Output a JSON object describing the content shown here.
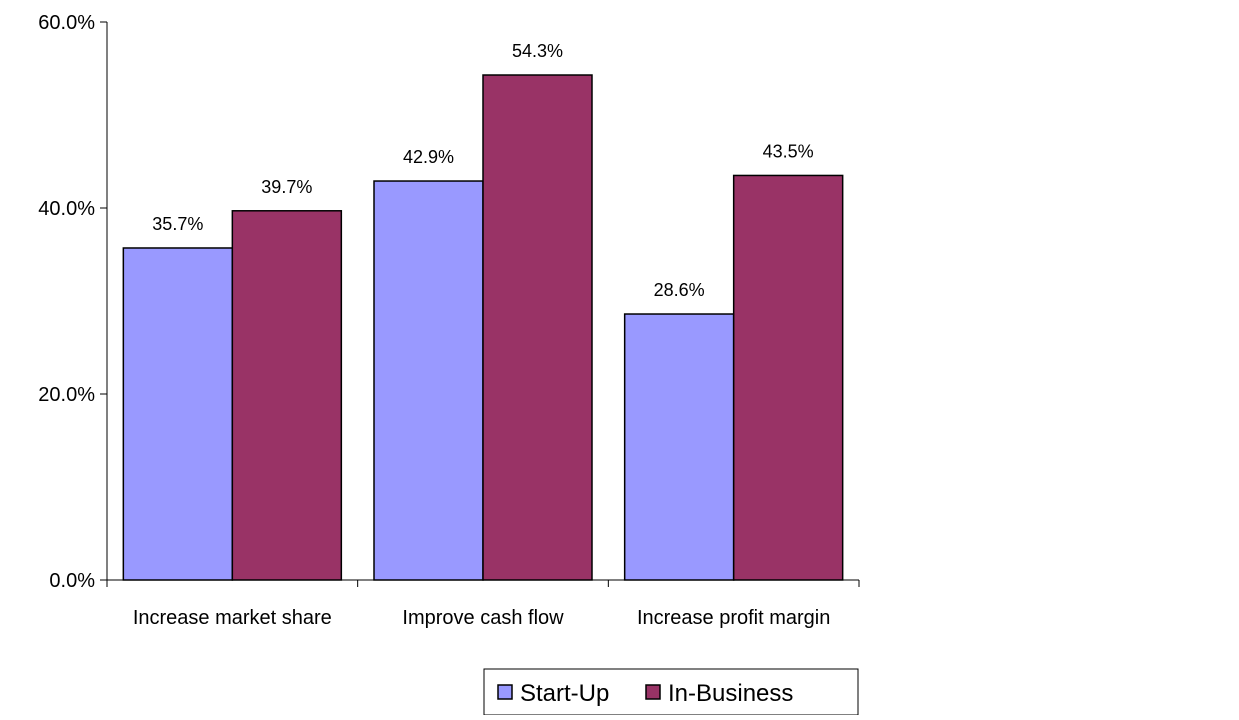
{
  "chart_data": {
    "type": "bar",
    "title": "",
    "xlabel": "",
    "ylabel": "",
    "categories": [
      "Increase market share",
      "Improve cash flow",
      "Increase profit margin"
    ],
    "series": [
      {
        "name": "Start-Up",
        "values": [
          35.7,
          42.9,
          28.6
        ],
        "labels": [
          "35.7%",
          "42.9%",
          "28.6%"
        ],
        "color": "#9999ff"
      },
      {
        "name": "In-Business",
        "values": [
          39.7,
          54.3,
          43.5
        ],
        "labels": [
          "39.7%",
          "54.3%",
          "43.5%"
        ],
        "color": "#993366"
      }
    ],
    "ylim": [
      0,
      60
    ],
    "yticks": [
      0,
      20,
      40,
      60
    ],
    "ytick_labels": [
      "0.0%",
      "20.0%",
      "40.0%",
      "60.0%"
    ],
    "grid": false,
    "legend_position": "bottom-center"
  }
}
